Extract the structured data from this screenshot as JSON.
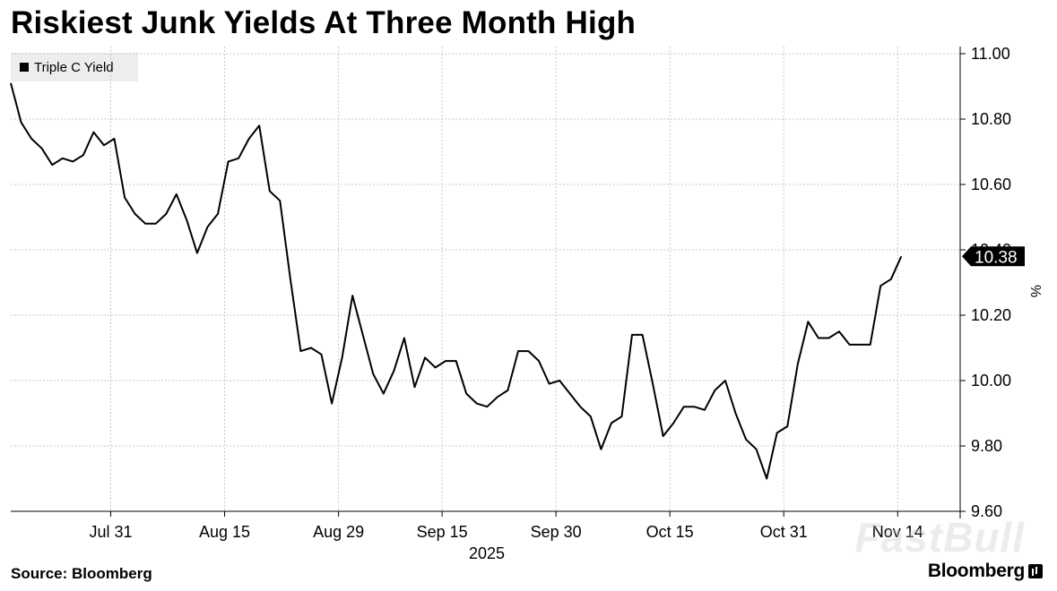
{
  "title": "Riskiest Junk Yields At Three Month High",
  "source": "Source: Bloomberg",
  "brand": "Bloomberg",
  "watermark": "FastBull",
  "colors": {
    "line": "#000000",
    "grid": "#c8c8c8",
    "legend_bg": "#ededed",
    "callout_bg": "#000000"
  },
  "chart_data": {
    "type": "line",
    "title": "Riskiest Junk Yields At Three Month High",
    "ylabel": "%",
    "ylim": [
      9.6,
      11.0
    ],
    "y_ticks": [
      "11.00",
      "10.80",
      "10.60",
      "10.40",
      "10.20",
      "10.00",
      "9.80",
      "9.60"
    ],
    "y_tick_values": [
      11.0,
      10.8,
      10.6,
      10.4,
      10.2,
      10.0,
      9.8,
      9.6
    ],
    "x_ticks": [
      "Jul 31",
      "Aug 15",
      "Aug 29",
      "Sep 15",
      "Sep 30",
      "Oct 15",
      "Oct 31",
      "Nov 14"
    ],
    "x_tick_index": [
      10,
      21,
      32,
      42,
      53,
      64,
      75,
      86
    ],
    "year_label": "2025",
    "legend": [
      "Triple C Yield"
    ],
    "grid": true,
    "last_value_label": "10.38",
    "series": [
      {
        "name": "Triple C Yield",
        "values": [
          10.91,
          10.79,
          10.74,
          10.71,
          10.66,
          10.68,
          10.67,
          10.69,
          10.76,
          10.72,
          10.74,
          10.56,
          10.51,
          10.48,
          10.48,
          10.51,
          10.57,
          10.49,
          10.39,
          10.47,
          10.51,
          10.67,
          10.68,
          10.74,
          10.78,
          10.58,
          10.55,
          10.31,
          10.09,
          10.1,
          10.08,
          9.93,
          10.07,
          10.26,
          10.14,
          10.02,
          9.96,
          10.03,
          10.13,
          9.98,
          10.07,
          10.04,
          10.06,
          10.06,
          9.96,
          9.93,
          9.92,
          9.95,
          9.97,
          10.09,
          10.09,
          10.06,
          9.99,
          10.0,
          9.96,
          9.92,
          9.89,
          9.79,
          9.87,
          9.89,
          10.14,
          10.14,
          9.99,
          9.83,
          9.87,
          9.92,
          9.92,
          9.91,
          9.97,
          10.0,
          9.9,
          9.82,
          9.79,
          9.7,
          9.84,
          9.86,
          10.05,
          10.18,
          10.13,
          10.13,
          10.15,
          10.11,
          10.11,
          10.11,
          10.29,
          10.31,
          10.38
        ]
      }
    ]
  }
}
